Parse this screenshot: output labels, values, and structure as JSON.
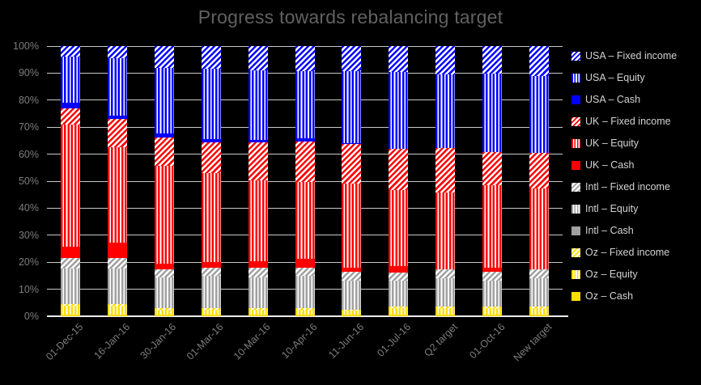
{
  "title": "Progress towards rebalancing target",
  "colors": {
    "background": "#000000",
    "title_text": "#616161",
    "axis_text": "#7d7d7d",
    "gridline": "#c9c9c9",
    "baseline": "#ececec",
    "legend_text": "#d2d2d2",
    "pattern_background": "#ffffff",
    "usa": "#0000ff",
    "uk": "#ff0000",
    "intl": "#a0a0a0",
    "oz": "#ffdd00"
  },
  "chart_data": {
    "type": "bar",
    "stacked": true,
    "units": "percent",
    "title": "Progress towards rebalancing target",
    "xlabel": "",
    "ylabel": "",
    "ylim": [
      0,
      100
    ],
    "grid": true,
    "legend_position": "right",
    "yticks": [
      "0%",
      "10%",
      "20%",
      "30%",
      "40%",
      "50%",
      "60%",
      "70%",
      "80%",
      "90%",
      "100%"
    ],
    "categories": [
      "01-Dec-15",
      "16-Jan-16",
      "30-Jan-16",
      "01-Mar-16",
      "10-Mar-16",
      "10-Apr-16",
      "11-Jun-16",
      "01-Jul-16",
      "Q2 target",
      "01-Oct-16",
      "New target"
    ],
    "series": [
      {
        "name": "Oz – Cash",
        "color_key": "oz",
        "pattern": "solid",
        "values": [
          0.5,
          0.5,
          0.5,
          0.5,
          0.5,
          0.5,
          0.5,
          0.5,
          0.5,
          0.5,
          0.5
        ]
      },
      {
        "name": "Oz – Equity",
        "color_key": "oz",
        "pattern": "vertical",
        "values": [
          3.5,
          3.5,
          2.0,
          2.0,
          2.0,
          2.0,
          1.5,
          2.5,
          2.5,
          2.5,
          2.5
        ]
      },
      {
        "name": "Oz – Fixed income",
        "color_key": "oz",
        "pattern": "diagonal",
        "values": [
          0.5,
          0.5,
          0.5,
          0.5,
          0.5,
          0.5,
          0.5,
          0.5,
          0.5,
          0.5,
          0.5
        ]
      },
      {
        "name": "Intl – Cash",
        "color_key": "intl",
        "pattern": "solid",
        "values": [
          0,
          0,
          0,
          0,
          0,
          0,
          0,
          0,
          0,
          0,
          0
        ]
      },
      {
        "name": "Intl – Equity",
        "color_key": "intl",
        "pattern": "vertical",
        "values": [
          13.2,
          13.2,
          11.3,
          11.9,
          11.3,
          11.9,
          10.8,
          9.7,
          10.5,
          9.8,
          10.5
        ]
      },
      {
        "name": "Intl – Fixed income",
        "color_key": "intl",
        "pattern": "diagonal",
        "values": [
          4.0,
          4.0,
          3.1,
          3.2,
          3.6,
          3.0,
          3.2,
          3.1,
          3.3,
          3.1,
          3.4
        ]
      },
      {
        "name": "UK – Cash",
        "color_key": "uk",
        "pattern": "solid",
        "values": [
          4.0,
          5.7,
          2.0,
          2.1,
          2.5,
          3.3,
          1.5,
          2.4,
          0,
          1.5,
          0
        ]
      },
      {
        "name": "UK – Equity",
        "color_key": "uk",
        "pattern": "vertical",
        "values": [
          45.3,
          35.1,
          36.4,
          32.7,
          29.8,
          28.6,
          31.2,
          28.1,
          28.6,
          30.6,
          29.9
        ]
      },
      {
        "name": "UK – Fixed income",
        "color_key": "uk",
        "pattern": "diagonal",
        "values": [
          6.0,
          10.5,
          10.4,
          11.5,
          14.2,
          15.0,
          14.5,
          15.1,
          16.3,
          12.4,
          13.1
        ]
      },
      {
        "name": "USA – Cash",
        "color_key": "usa",
        "pattern": "solid",
        "values": [
          2.0,
          1.3,
          1.4,
          1.2,
          1.0,
          1.0,
          0.5,
          0,
          0,
          0,
          0
        ]
      },
      {
        "name": "USA – Equity",
        "color_key": "usa",
        "pattern": "vertical",
        "values": [
          17.1,
          21.1,
          24.2,
          25.9,
          25.6,
          24.8,
          26.4,
          28.4,
          27.4,
          28.8,
          28.4
        ]
      },
      {
        "name": "USA – Fixed income",
        "color_key": "usa",
        "pattern": "diagonal",
        "values": [
          3.9,
          4.6,
          8.2,
          8.5,
          9.0,
          9.4,
          9.4,
          9.7,
          10.4,
          10.3,
          11.2
        ]
      }
    ]
  }
}
